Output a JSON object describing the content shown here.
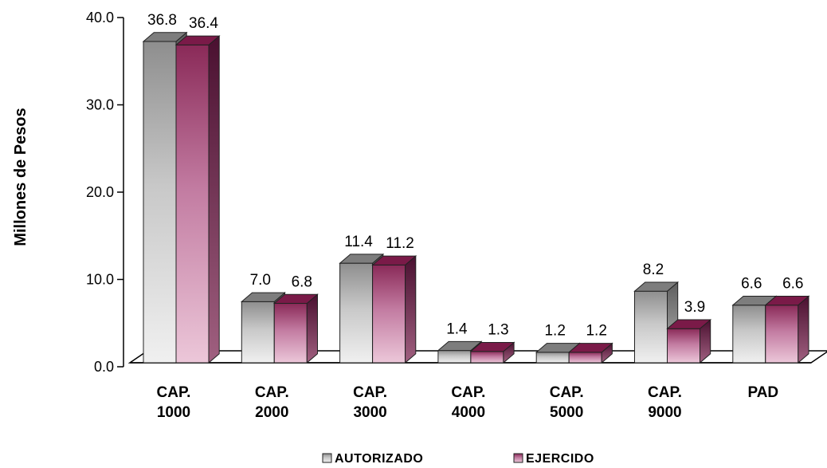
{
  "chart_data": {
    "type": "bar",
    "categories": [
      [
        "CAP.",
        "1000"
      ],
      [
        "CAP.",
        "2000"
      ],
      [
        "CAP.",
        "3000"
      ],
      [
        "CAP.",
        "4000"
      ],
      [
        "CAP.",
        "5000"
      ],
      [
        "CAP.",
        "9000"
      ],
      [
        "PAD"
      ]
    ],
    "series": [
      {
        "name": "AUTORIZADO",
        "values": [
          36.8,
          7.0,
          11.4,
          1.4,
          1.2,
          8.2,
          6.6
        ],
        "labels": [
          "36.8",
          "7.0",
          "11.4",
          "1.4",
          "1.2",
          "8.2",
          "6.6"
        ],
        "color": "#9a9a9a"
      },
      {
        "name": "EJERCIDO",
        "values": [
          36.4,
          6.8,
          11.2,
          1.3,
          1.2,
          3.9,
          6.6
        ],
        "labels": [
          "36.4",
          "6.8",
          "11.2",
          "1.3",
          "1.2",
          "3.9",
          "6.6"
        ],
        "color": "#8b2252"
      }
    ],
    "ylabel": "Millones de Pesos",
    "ylim": [
      0,
      40
    ],
    "yticks": [
      "0.0",
      "10.0",
      "20.0",
      "30.0",
      "40.0"
    ],
    "ytick_values": [
      0,
      10,
      20,
      30,
      40
    ],
    "legend_position": "bottom",
    "grid": false,
    "style": "3d-column"
  }
}
